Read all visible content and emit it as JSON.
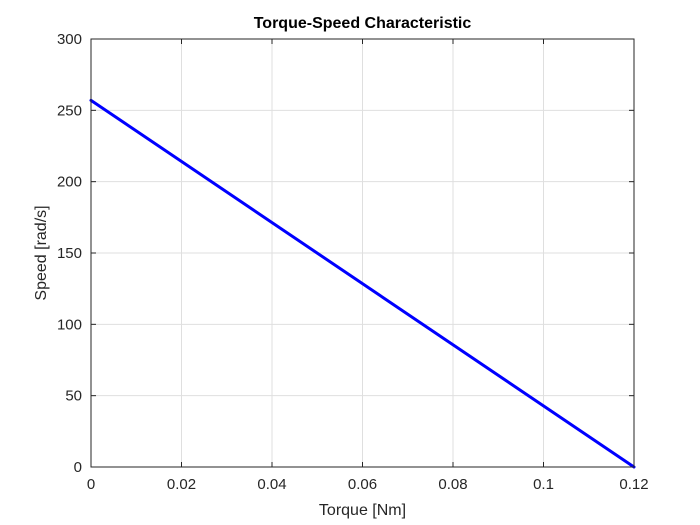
{
  "chart_data": {
    "type": "line",
    "title": "Torque-Speed Characteristic",
    "xlabel": "Torque [Nm]",
    "ylabel": "Speed [rad/s]",
    "xlim": [
      0,
      0.12
    ],
    "ylim": [
      0,
      300
    ],
    "xticks": [
      0,
      0.02,
      0.04,
      0.06,
      0.08,
      0.1,
      0.12
    ],
    "xtick_labels": [
      "0",
      "0.02",
      "0.04",
      "0.06",
      "0.08",
      "0.1",
      "0.12"
    ],
    "yticks": [
      0,
      50,
      100,
      150,
      200,
      250,
      300
    ],
    "ytick_labels": [
      "0",
      "50",
      "100",
      "150",
      "200",
      "250",
      "300"
    ],
    "grid": true,
    "series": [
      {
        "color": "#0000ff",
        "x": [
          0,
          0.12
        ],
        "y": [
          257,
          0
        ]
      }
    ]
  }
}
